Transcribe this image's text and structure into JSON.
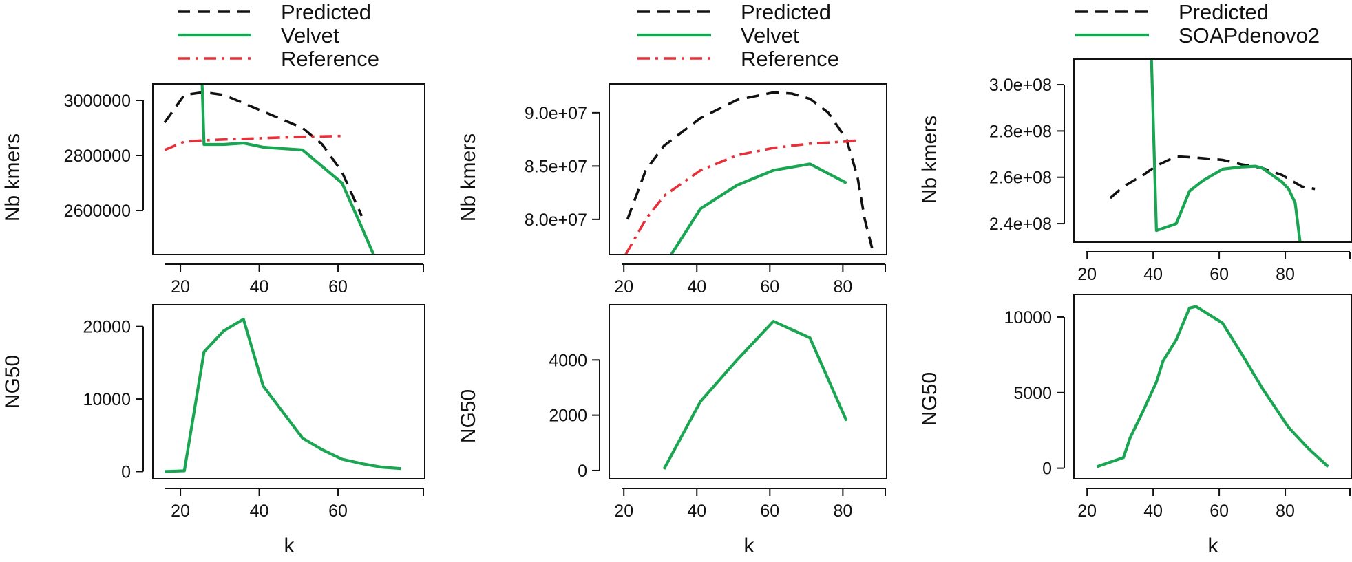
{
  "chart_data": [
    {
      "panel": "top-left",
      "type": "line",
      "xlabel": "",
      "ylabel": "Nb kmers",
      "xlim": [
        13,
        82
      ],
      "ylim": [
        2440000,
        3060000
      ],
      "xticks": [
        20,
        40,
        60
      ],
      "xtick_labels": [
        "20",
        "40",
        "60"
      ],
      "yticks": [
        2600000,
        2800000,
        3000000
      ],
      "ytick_labels": [
        "2600000",
        "2800000",
        "3000000"
      ],
      "legend": [
        "Predicted",
        "Velvet",
        "Reference"
      ],
      "series": [
        {
          "name": "Predicted",
          "style": "dashed",
          "color": "#111111",
          "points": [
            [
              16,
              2920000
            ],
            [
              21,
              3020000
            ],
            [
              26,
              3030000
            ],
            [
              31,
              3020000
            ],
            [
              41,
              2960000
            ],
            [
              51,
              2900000
            ],
            [
              56,
              2840000
            ],
            [
              61,
              2740000
            ],
            [
              66,
              2580000
            ]
          ]
        },
        {
          "name": "Velvet",
          "style": "solid",
          "color": "#1aa553",
          "points": [
            [
              25.5,
              3060000
            ],
            [
              26,
              2840000
            ],
            [
              31,
              2840000
            ],
            [
              36,
              2845000
            ],
            [
              41,
              2830000
            ],
            [
              51,
              2820000
            ],
            [
              61,
              2700000
            ],
            [
              66,
              2540000
            ],
            [
              69,
              2440000
            ]
          ]
        },
        {
          "name": "Reference",
          "style": "dashdot",
          "color": "#e8303a",
          "points": [
            [
              16,
              2820000
            ],
            [
              21,
              2850000
            ],
            [
              26,
              2855000
            ],
            [
              31,
              2858000
            ],
            [
              41,
              2863000
            ],
            [
              51,
              2868000
            ],
            [
              61,
              2871000
            ]
          ]
        }
      ]
    },
    {
      "panel": "top-middle",
      "type": "line",
      "xlabel": "",
      "ylabel": "Nb kmers",
      "xlim": [
        16,
        92
      ],
      "ylim": [
        76700000,
        92700000
      ],
      "xticks": [
        20,
        40,
        60,
        80
      ],
      "xtick_labels": [
        "20",
        "40",
        "60",
        "80"
      ],
      "yticks": [
        80000000,
        85000000,
        90000000
      ],
      "ytick_labels": [
        "8.0e+07",
        "8.5e+07",
        "9.0e+07"
      ],
      "legend": [
        "Predicted",
        "Velvet",
        "Reference"
      ],
      "series": [
        {
          "name": "Predicted",
          "style": "dashed",
          "color": "#111111",
          "points": [
            [
              21,
              80000000
            ],
            [
              26,
              84600000
            ],
            [
              31,
              86900000
            ],
            [
              41,
              89500000
            ],
            [
              51,
              91200000
            ],
            [
              61,
              91900000
            ],
            [
              66,
              91800000
            ],
            [
              71,
              91300000
            ],
            [
              76,
              90000000
            ],
            [
              81,
              87500000
            ],
            [
              84,
              84000000
            ],
            [
              86,
              80000000
            ],
            [
              88,
              77300000
            ]
          ]
        },
        {
          "name": "Velvet",
          "style": "solid",
          "color": "#1aa553",
          "points": [
            [
              33,
              76700000
            ],
            [
              41,
              81000000
            ],
            [
              51,
              83200000
            ],
            [
              61,
              84600000
            ],
            [
              71,
              85200000
            ],
            [
              81,
              83400000
            ]
          ]
        },
        {
          "name": "Reference",
          "style": "dashdot",
          "color": "#e8303a",
          "points": [
            [
              20.5,
              76700000
            ],
            [
              26,
              80000000
            ],
            [
              31,
              82200000
            ],
            [
              41,
              84600000
            ],
            [
              51,
              86000000
            ],
            [
              61,
              86700000
            ],
            [
              71,
              87100000
            ],
            [
              81,
              87300000
            ],
            [
              84,
              87400000
            ]
          ]
        }
      ]
    },
    {
      "panel": "top-right",
      "type": "line",
      "xlabel": "",
      "ylabel": "Nb kmers",
      "xlim": [
        16,
        100
      ],
      "ylim": [
        232000000,
        311000000
      ],
      "xticks": [
        20,
        40,
        60,
        80
      ],
      "xtick_labels": [
        "20",
        "40",
        "60",
        "80"
      ],
      "yticks": [
        240000000,
        260000000,
        280000000,
        300000000
      ],
      "ytick_labels": [
        "2.4e+08",
        "2.6e+08",
        "2.8e+08",
        "3.0e+08"
      ],
      "legend": [
        "Predicted",
        "SOAPdenovo2"
      ],
      "series": [
        {
          "name": "Predicted",
          "style": "dashed",
          "color": "#111111",
          "points": [
            [
              27,
              251000000
            ],
            [
              31,
              256000000
            ],
            [
              37,
              261000000
            ],
            [
              41,
              265000000
            ],
            [
              47,
              269000000
            ],
            [
              53,
              268500000
            ],
            [
              61,
              267500000
            ],
            [
              67,
              265500000
            ],
            [
              73,
              264000000
            ],
            [
              79,
              261000000
            ],
            [
              85,
              256000000
            ],
            [
              89,
              255000000
            ]
          ]
        },
        {
          "name": "SOAPdenovo2",
          "style": "solid",
          "color": "#1aa553",
          "points": [
            [
              39.5,
              311000000
            ],
            [
              41,
              237000000
            ],
            [
              47,
              240000000
            ],
            [
              51,
              254000000
            ],
            [
              55,
              258500000
            ],
            [
              61,
              263500000
            ],
            [
              67,
              264500000
            ],
            [
              71,
              264800000
            ],
            [
              73,
              264000000
            ],
            [
              79,
              258000000
            ],
            [
              81,
              255000000
            ],
            [
              83,
              249000000
            ],
            [
              84.5,
              232000000
            ]
          ]
        }
      ]
    },
    {
      "panel": "bottom-left",
      "type": "line",
      "xlabel": "k",
      "ylabel": "NG50",
      "xlim": [
        13,
        82
      ],
      "ylim": [
        -1000,
        23000
      ],
      "xticks": [
        20,
        40,
        60
      ],
      "xtick_labels": [
        "20",
        "40",
        "60"
      ],
      "yticks": [
        0,
        10000,
        20000
      ],
      "ytick_labels": [
        "0",
        "10000",
        "20000"
      ],
      "series": [
        {
          "name": "Velvet",
          "style": "solid",
          "color": "#1aa553",
          "points": [
            [
              16,
              0
            ],
            [
              21,
              100
            ],
            [
              26,
              16500
            ],
            [
              31,
              19400
            ],
            [
              36,
              21000
            ],
            [
              41,
              11800
            ],
            [
              51,
              4600
            ],
            [
              56,
              3000
            ],
            [
              61,
              1700
            ],
            [
              66,
              1100
            ],
            [
              71,
              600
            ],
            [
              76,
              400
            ]
          ]
        }
      ]
    },
    {
      "panel": "bottom-middle",
      "type": "line",
      "xlabel": "k",
      "ylabel": "NG50",
      "xlim": [
        16,
        92
      ],
      "ylim": [
        -300,
        6000
      ],
      "xticks": [
        20,
        40,
        60,
        80
      ],
      "xtick_labels": [
        "20",
        "40",
        "60",
        "80"
      ],
      "yticks": [
        0,
        2000,
        4000
      ],
      "ytick_labels": [
        "0",
        "2000",
        "4000"
      ],
      "series": [
        {
          "name": "Velvet",
          "style": "solid",
          "color": "#1aa553",
          "points": [
            [
              31,
              50
            ],
            [
              41,
              2500
            ],
            [
              51,
              4000
            ],
            [
              61,
              5400
            ],
            [
              71,
              4800
            ],
            [
              81,
              1800
            ]
          ]
        }
      ]
    },
    {
      "panel": "bottom-right",
      "type": "line",
      "xlabel": "k",
      "ylabel": "NG50",
      "xlim": [
        16,
        100
      ],
      "ylim": [
        -700,
        11500
      ],
      "xticks": [
        20,
        40,
        60,
        80
      ],
      "xtick_labels": [
        "20",
        "40",
        "60",
        "80"
      ],
      "yticks": [
        0,
        5000,
        10000
      ],
      "ytick_labels": [
        "0",
        "5000",
        "10000"
      ],
      "series": [
        {
          "name": "SOAPdenovo2",
          "style": "solid",
          "color": "#1aa553",
          "points": [
            [
              23,
              100
            ],
            [
              31,
              700
            ],
            [
              33,
              2000
            ],
            [
              37,
              3800
            ],
            [
              41,
              5700
            ],
            [
              43,
              7100
            ],
            [
              47,
              8500
            ],
            [
              51,
              10600
            ],
            [
              53,
              10700
            ],
            [
              61,
              9600
            ],
            [
              67,
              7500
            ],
            [
              73,
              5300
            ],
            [
              81,
              2700
            ],
            [
              87,
              1300
            ],
            [
              93,
              100
            ]
          ]
        }
      ]
    }
  ]
}
